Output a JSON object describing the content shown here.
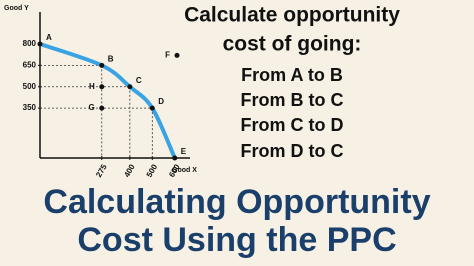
{
  "chart_data": {
    "type": "line",
    "x_label": "Good X",
    "y_label": "Good Y",
    "x": [
      0,
      275,
      400,
      500,
      600
    ],
    "values": [
      800,
      650,
      500,
      350,
      0
    ],
    "point_labels": [
      "A",
      "B",
      "C",
      "D",
      "E"
    ],
    "color": "#3aa3e3",
    "points": [
      {
        "label": "F",
        "x": 610,
        "y": 720
      },
      {
        "label": "G",
        "x": 275,
        "y": 350
      },
      {
        "label": "H",
        "x": 275,
        "y": 500
      }
    ],
    "xlim": [
      0,
      650
    ],
    "ylim": [
      0,
      1000
    ],
    "xticks": [
      275,
      400,
      500,
      600
    ],
    "yticks": [
      800,
      650,
      500,
      350
    ]
  },
  "question": [
    "Calculate opportunity",
    "cost of going:"
  ],
  "tasks": [
    "From A to B",
    "From B to C",
    "From C to D",
    "From D to C"
  ],
  "headline": [
    "Calculating Opportunity",
    "Cost  Using the PPC"
  ]
}
